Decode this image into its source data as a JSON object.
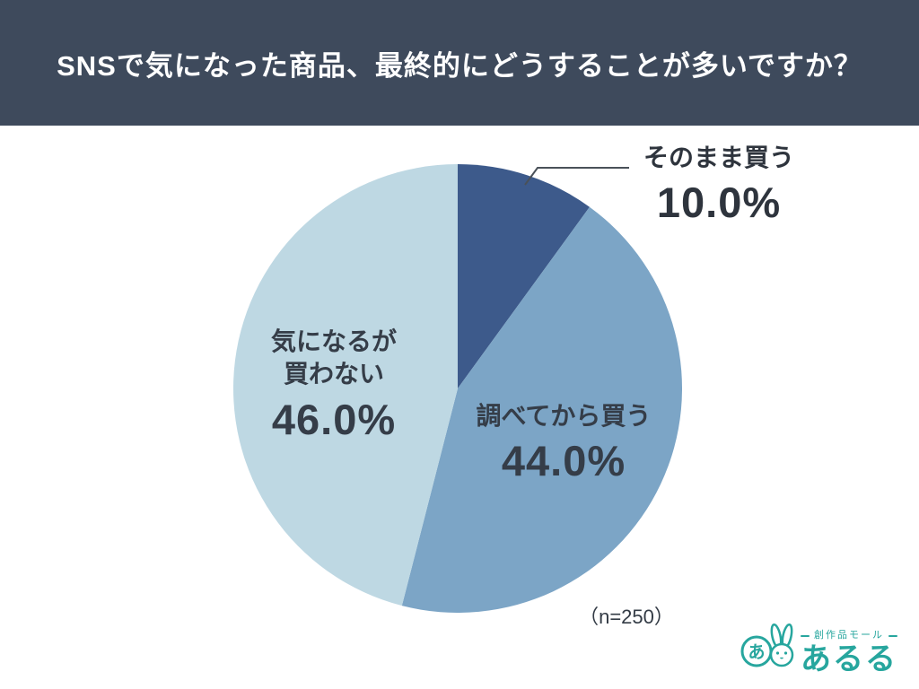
{
  "header": {
    "title": "SNSで気になった商品、最終的にどうすることが多いですか？",
    "background": "#3e4a5c",
    "text_color": "#ffffff"
  },
  "chart_data": {
    "type": "pie",
    "title": "SNSで気になった商品、最終的にどうすることが多いですか？",
    "start_angle_deg": 0,
    "direction": "clockwise",
    "unit": "%",
    "legend": "none",
    "sample_size": 250,
    "sample_size_label": "（n=250）",
    "text_color": "#353d48",
    "slices": [
      {
        "label": "そのまま買う",
        "value": 10.0,
        "percent_label": "10.0%",
        "color": "#3d5a8b",
        "label_placement": "outside-top-right"
      },
      {
        "label": "調べてから買う",
        "value": 44.0,
        "percent_label": "44.0%",
        "color": "#7ca5c6",
        "label_placement": "inside"
      },
      {
        "label": "気になるが買わない",
        "label_lines": [
          "気になるが",
          "買わない"
        ],
        "value": 46.0,
        "percent_label": "46.0%",
        "color": "#bed8e3",
        "label_placement": "inside"
      }
    ]
  },
  "footer": {
    "logo": {
      "brand_small": "創作品モール",
      "brand_large": "あるる",
      "color": "#27a69e",
      "mascot": "rabbit-and-circle-mark"
    }
  }
}
